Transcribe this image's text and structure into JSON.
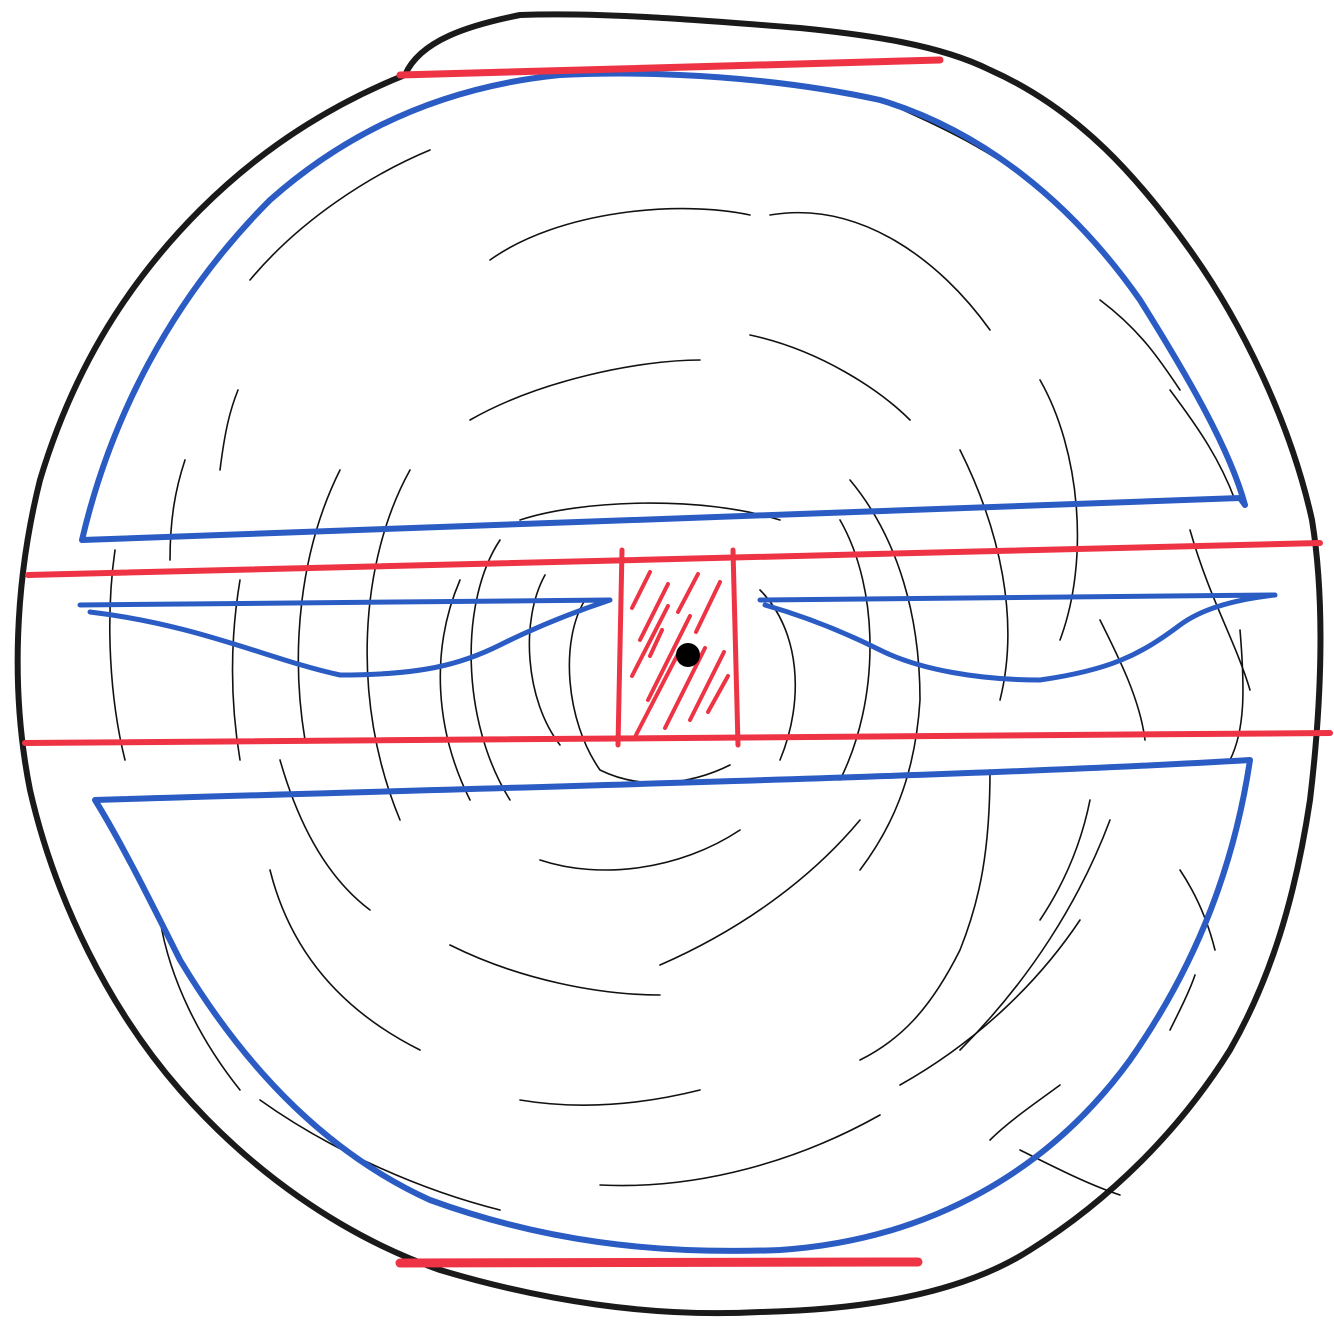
{
  "colors": {
    "background": "#ffffff",
    "log_outline": "#1a1a1a",
    "growth_rings": "#111111",
    "cut_lines": "#ee3344",
    "board_outlines": "#2a5cc4",
    "pith": "#000000"
  }
}
